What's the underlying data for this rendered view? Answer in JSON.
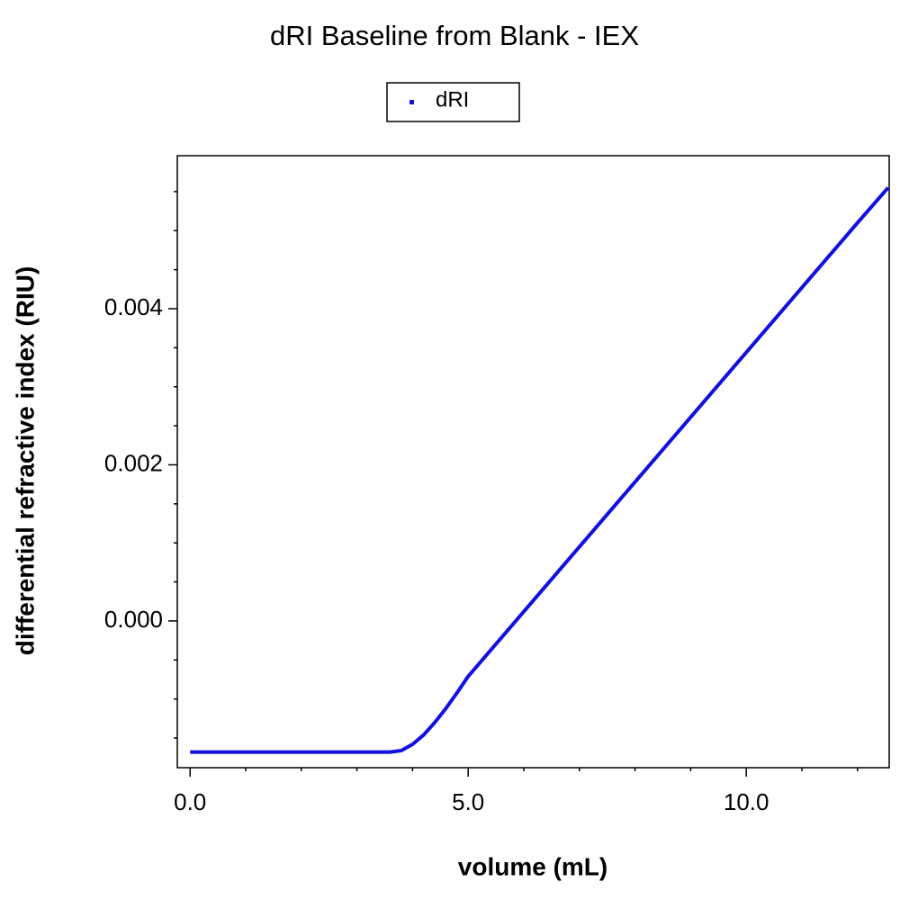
{
  "chart_data": {
    "type": "line",
    "title": "dRI Baseline from Blank - IEX",
    "xlabel": "volume (mL)",
    "ylabel": "differential refractive index (RIU)",
    "x": [
      0,
      3.6,
      3.8,
      4.0,
      4.2,
      4.4,
      4.6,
      4.8,
      5.0,
      6,
      7,
      8,
      9,
      10,
      11,
      12,
      12.55
    ],
    "series": [
      {
        "name": "dRI",
        "color": "#1010e0",
        "values": [
          -0.00168,
          -0.00168,
          -0.00166,
          -0.00158,
          -0.00146,
          -0.0013,
          -0.00112,
          -0.00092,
          -0.00071,
          0.00012,
          0.00095,
          0.00178,
          0.00261,
          0.00344,
          0.00427,
          0.0051,
          0.00555
        ]
      }
    ],
    "xlim": [
      -0.23,
      12.57
    ],
    "ylim": [
      -0.00188,
      0.00596
    ],
    "xticks": [
      {
        "value": 0,
        "label": "0.0"
      },
      {
        "value": 5,
        "label": "5.0"
      },
      {
        "value": 10,
        "label": "10.0"
      }
    ],
    "yticks": [
      {
        "value": 0,
        "label": "0.000"
      },
      {
        "value": 0.002,
        "label": "0.002"
      },
      {
        "value": 0.004,
        "label": "0.004"
      }
    ],
    "xminorticks": [
      1,
      2,
      3,
      4,
      6,
      7,
      8,
      9,
      11,
      12
    ],
    "yminorticks": [
      -0.0015,
      -0.001,
      -0.0005,
      0.0005,
      0.001,
      0.0015,
      0.0025,
      0.003,
      0.0035,
      0.0045,
      0.005,
      0.0055
    ],
    "legend": "top"
  }
}
